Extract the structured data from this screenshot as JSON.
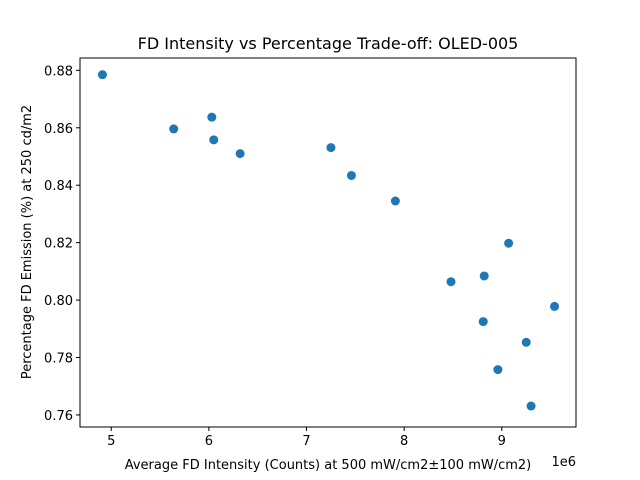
{
  "chart_data": {
    "type": "scatter",
    "title": "FD Intensity vs Percentage Trade-off: OLED-005",
    "xlabel": "Average FD Intensity (Counts) at 500 mW/cm2±100 mW/cm2)",
    "ylabel": "Percentage FD Emission (%) at 250 cd/m2",
    "x_offset_label": "1e6",
    "xlim": [
      4.68,
      9.76
    ],
    "ylim": [
      0.7558,
      0.8843
    ],
    "xticks": [
      5,
      6,
      7,
      8,
      9
    ],
    "xtick_labels": [
      "5",
      "6",
      "7",
      "8",
      "9"
    ],
    "yticks": [
      0.76,
      0.78,
      0.8,
      0.82,
      0.84,
      0.86,
      0.88
    ],
    "ytick_labels": [
      "0.76",
      "0.78",
      "0.80",
      "0.82",
      "0.84",
      "0.86",
      "0.88"
    ],
    "grid": false,
    "point_color": "#1f77b4",
    "points": [
      {
        "x": 4.91,
        "y": 0.8785
      },
      {
        "x": 5.64,
        "y": 0.8596
      },
      {
        "x": 6.03,
        "y": 0.8637
      },
      {
        "x": 6.05,
        "y": 0.8558
      },
      {
        "x": 6.32,
        "y": 0.851
      },
      {
        "x": 7.25,
        "y": 0.8531
      },
      {
        "x": 7.46,
        "y": 0.8434
      },
      {
        "x": 7.91,
        "y": 0.8345
      },
      {
        "x": 8.48,
        "y": 0.8064
      },
      {
        "x": 8.81,
        "y": 0.7925
      },
      {
        "x": 8.82,
        "y": 0.8084
      },
      {
        "x": 8.96,
        "y": 0.7758
      },
      {
        "x": 9.07,
        "y": 0.8198
      },
      {
        "x": 9.25,
        "y": 0.7853
      },
      {
        "x": 9.3,
        "y": 0.7631
      },
      {
        "x": 9.54,
        "y": 0.7978
      }
    ]
  }
}
